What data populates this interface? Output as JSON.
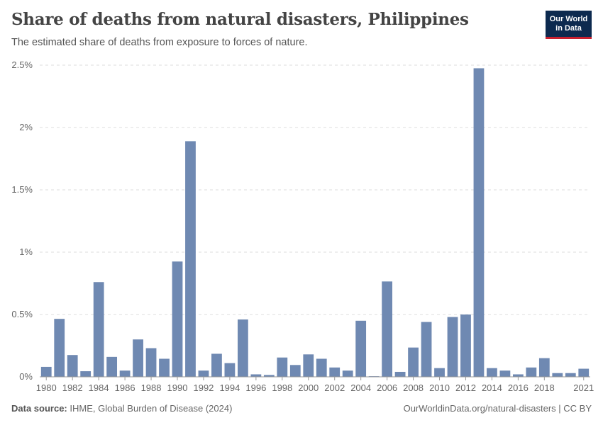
{
  "header": {
    "title": "Share of deaths from natural disasters, Philippines",
    "subtitle": "The estimated share of deaths from exposure to forces of nature."
  },
  "logo": {
    "line1": "Our World",
    "line2": "in Data"
  },
  "footer": {
    "source_label": "Data source:",
    "source_text": "IHME, Global Burden of Disease (2024)",
    "link_text": "OurWorldinData.org/natural-disasters | CC BY"
  },
  "colors": {
    "bar": "#6f89b2",
    "grid": "#dddddd",
    "axis": "#999999",
    "logo_bg": "#0d2a4f",
    "logo_accent": "#c8202f"
  },
  "chart_data": {
    "type": "bar",
    "categories": [
      1980,
      1981,
      1982,
      1983,
      1984,
      1985,
      1986,
      1987,
      1988,
      1989,
      1990,
      1991,
      1992,
      1993,
      1994,
      1995,
      1996,
      1997,
      1998,
      1999,
      2000,
      2001,
      2002,
      2003,
      2004,
      2005,
      2006,
      2007,
      2008,
      2009,
      2010,
      2011,
      2012,
      2013,
      2014,
      2015,
      2016,
      2017,
      2018,
      2019,
      2020,
      2021
    ],
    "values": [
      0.08,
      0.465,
      0.175,
      0.045,
      0.76,
      0.16,
      0.05,
      0.3,
      0.23,
      0.145,
      0.925,
      1.89,
      0.05,
      0.185,
      0.11,
      0.46,
      0.02,
      0.015,
      0.155,
      0.095,
      0.18,
      0.145,
      0.075,
      0.05,
      0.45,
      0.005,
      0.765,
      0.04,
      0.235,
      0.44,
      0.07,
      0.48,
      0.5,
      2.475,
      0.07,
      0.05,
      0.02,
      0.075,
      0.15,
      0.03,
      0.03,
      0.065
    ],
    "x_tick_labels": [
      "1980",
      "1982",
      "1984",
      "1986",
      "1988",
      "1990",
      "1992",
      "1994",
      "1996",
      "1998",
      "2000",
      "2002",
      "2004",
      "2006",
      "2008",
      "2010",
      "2012",
      "2014",
      "2016",
      "2018",
      "2021"
    ],
    "y_ticks": [
      0,
      0.5,
      1,
      1.5,
      2,
      2.5
    ],
    "y_tick_labels": [
      "0%",
      "0.5%",
      "1%",
      "1.5%",
      "2%",
      "2.5%"
    ],
    "ylim": [
      0,
      2.5
    ],
    "unit": "%",
    "grid": true
  }
}
